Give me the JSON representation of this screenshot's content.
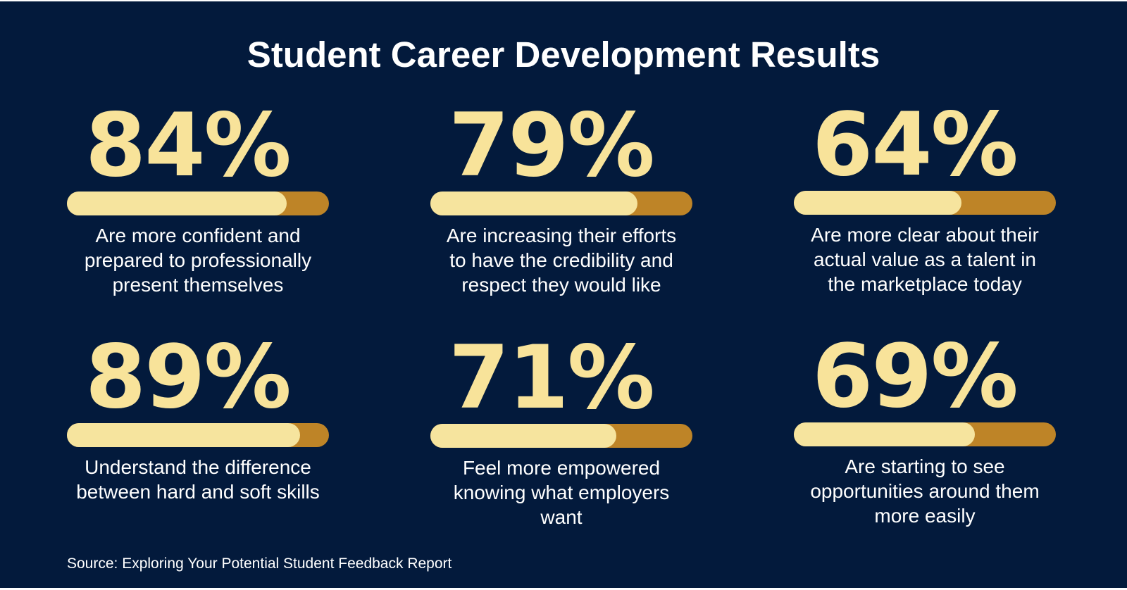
{
  "title": "Student Career Development Results",
  "colors": {
    "background": "#031A3C",
    "percent_text": "#F8E39A",
    "bar_fill": "#F6E49E",
    "bar_track": "#BE8427",
    "body_text": "#FFFFFF"
  },
  "chart_data": {
    "type": "bar",
    "categories": [
      "Are more confident and prepared to professionally present themselves",
      "Are increasing their efforts to have the credibility and respect they would like",
      "Are more clear about their actual value as a talent in the marketplace today",
      "Understand the difference between hard and soft skills",
      "Feel more empowered knowing what employers want",
      "Are starting to see opportunities around them more easily"
    ],
    "values": [
      84,
      79,
      64,
      89,
      71,
      69
    ],
    "ylim": [
      0,
      100
    ]
  },
  "stats": [
    {
      "label": "84%",
      "value": 84,
      "description": "Are more confident and\nprepared to professionally\npresent themselves"
    },
    {
      "label": "79%",
      "value": 79,
      "description": "Are increasing their efforts\nto have the credibility and\nrespect they would like"
    },
    {
      "label": "64%",
      "value": 64,
      "description": "Are more clear about their\nactual value as a talent in\nthe marketplace today"
    },
    {
      "label": "89%",
      "value": 89,
      "description": "Understand the difference\nbetween hard and soft skills"
    },
    {
      "label": "71%",
      "value": 71,
      "description": "Feel more empowered\nknowing what employers\nwant"
    },
    {
      "label": "69%",
      "value": 69,
      "description": "Are starting to see\nopportunities around them\nmore easily"
    }
  ],
  "source": "Source: Exploring Your Potential Student Feedback Report"
}
